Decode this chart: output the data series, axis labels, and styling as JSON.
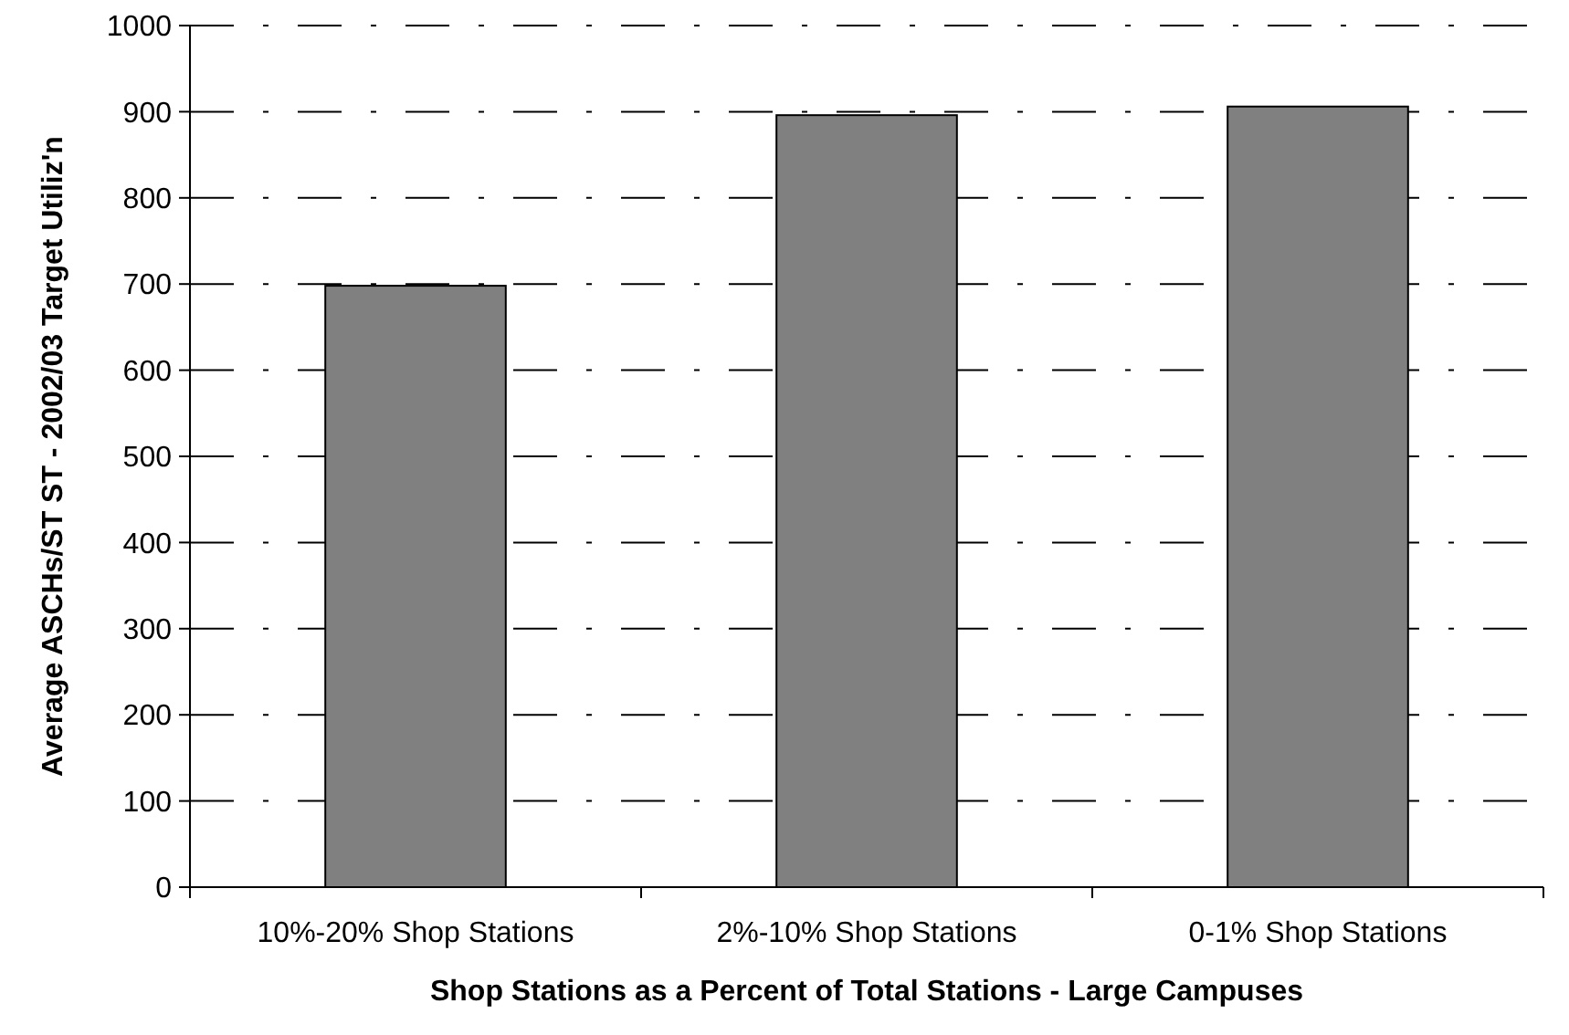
{
  "chart_data": {
    "type": "bar",
    "xlabel": "Shop Stations as a Percent of Total Stations - Large Campuses",
    "ylabel": "Average ASCHs/ST ST - 2002/03 Target Utiliz'n",
    "categories": [
      "10%-20% Shop Stations",
      "2%-10% Shop Stations",
      "0-1% Shop Stations"
    ],
    "values": [
      698,
      896,
      906
    ],
    "color": "#808080",
    "ylim": [
      0,
      1000
    ],
    "yticks": [
      0,
      100,
      200,
      300,
      400,
      500,
      600,
      700,
      800,
      900,
      1000
    ],
    "grid": "y"
  }
}
